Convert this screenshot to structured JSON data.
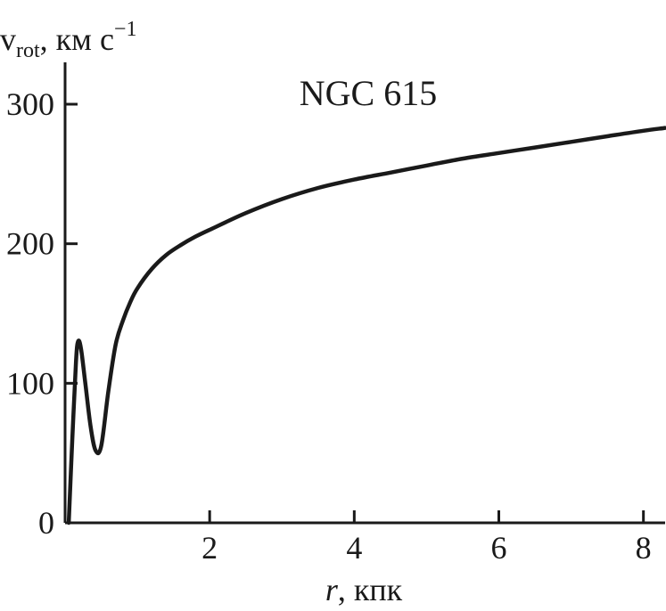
{
  "chart_data": {
    "type": "line",
    "ylabel": {
      "symbol": "v",
      "subscript": "rot",
      "units": ", км с",
      "superscript": "−1"
    },
    "xlabel": {
      "symbol": "r",
      "units": ", кпк"
    },
    "annotation": "NGC 615",
    "xlim": [
      0,
      8.3
    ],
    "ylim": [
      0,
      330
    ],
    "x_ticks": [
      {
        "value": 2,
        "label": "2"
      },
      {
        "value": 4,
        "label": "4"
      },
      {
        "value": 6,
        "label": "6"
      },
      {
        "value": 8,
        "label": "8"
      }
    ],
    "y_ticks": [
      {
        "value": 0,
        "label": "0"
      },
      {
        "value": 100,
        "label": "100"
      },
      {
        "value": 200,
        "label": "200"
      },
      {
        "value": 300,
        "label": "300"
      }
    ],
    "grid": false,
    "legend": "none",
    "series": [
      {
        "color": "#1a1a1a",
        "x": [
          0.05,
          0.1,
          0.15,
          0.18,
          0.22,
          0.28,
          0.35,
          0.42,
          0.5,
          0.6,
          0.7,
          0.8,
          0.9,
          1.0,
          1.2,
          1.4,
          1.6,
          1.8,
          2.0,
          2.5,
          3.0,
          3.5,
          4.0,
          4.5,
          5.0,
          5.5,
          6.0,
          6.5,
          7.0,
          7.5,
          8.0,
          8.3
        ],
        "y": [
          0,
          60,
          115,
          130,
          125,
          100,
          70,
          52,
          55,
          95,
          128,
          145,
          158,
          168,
          182,
          192,
          199,
          205,
          210,
          222,
          232,
          240,
          246,
          251,
          256,
          261,
          265,
          269,
          273,
          277,
          281,
          283
        ]
      }
    ]
  }
}
